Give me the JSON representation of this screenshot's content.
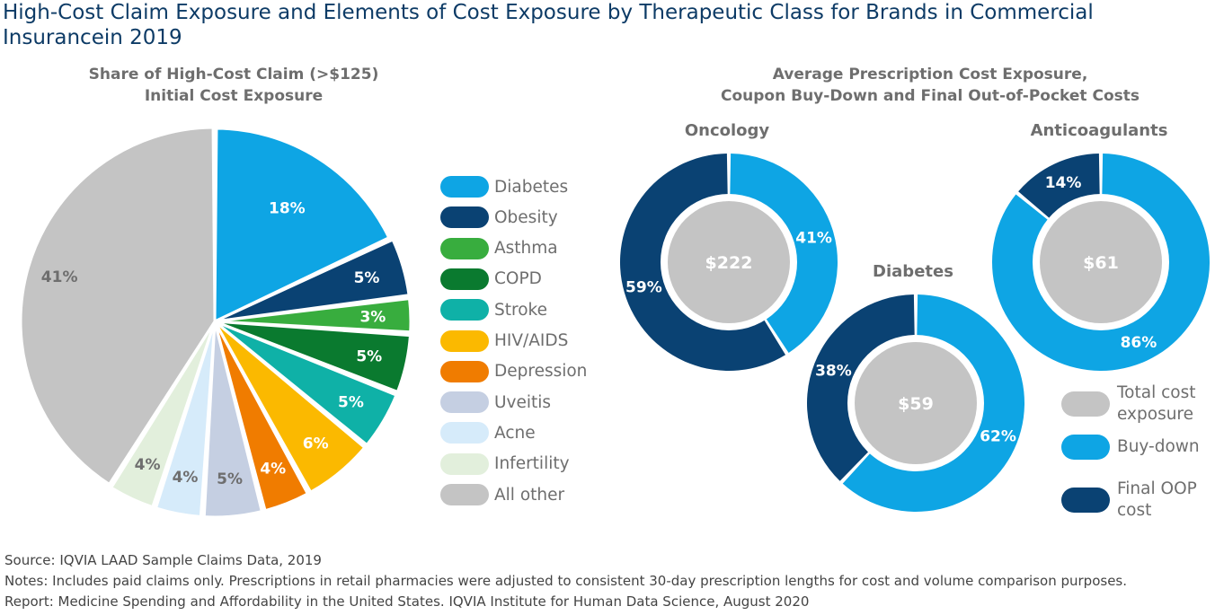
{
  "title": "High-Cost Claim Exposure and Elements of Cost Exposure by Therapeutic Class for Brands in Commercial Insurancein 2019",
  "chart_data": [
    {
      "type": "pie",
      "title_line1": "Share of High-Cost Claim (>$125)",
      "title_line2": "Initial Cost Exposure",
      "slices": [
        {
          "name": "Diabetes",
          "value": 18,
          "label": "18%",
          "color": "#0ea5e4",
          "text_color": "#ffffff"
        },
        {
          "name": "Obesity",
          "value": 5,
          "label": "5%",
          "color": "#0a4273",
          "text_color": "#ffffff"
        },
        {
          "name": "Asthma",
          "value": 3,
          "label": "3%",
          "color": "#38ad3e",
          "text_color": "#ffffff"
        },
        {
          "name": "COPD",
          "value": 5,
          "label": "5%",
          "color": "#0a7a2f",
          "text_color": "#ffffff"
        },
        {
          "name": "Stroke",
          "value": 5,
          "label": "5%",
          "color": "#0fb1a7",
          "text_color": "#ffffff"
        },
        {
          "name": "HIV/AIDS",
          "value": 6,
          "label": "6%",
          "color": "#fbb900",
          "text_color": "#ffffff"
        },
        {
          "name": "Depression",
          "value": 4,
          "label": "4%",
          "color": "#f07c00",
          "text_color": "#ffffff"
        },
        {
          "name": "Uveitis",
          "value": 5,
          "label": "5%",
          "color": "#c5cfe2",
          "text_color": "#6e6e6e"
        },
        {
          "name": "Acne",
          "value": 4,
          "label": "4%",
          "color": "#d6ebfa",
          "text_color": "#6e6e6e"
        },
        {
          "name": "Infertility",
          "value": 4,
          "label": "4%",
          "color": "#e2efdc",
          "text_color": "#6e6e6e"
        },
        {
          "name": "All other",
          "value": 41,
          "label": "41%",
          "color": "#c4c4c4",
          "text_color": "#6e6e6e"
        }
      ]
    },
    {
      "type": "donut",
      "title_line1": "Average Prescription Cost Exposure,",
      "title_line2": "Coupon Buy-Down and Final Out-of-Pocket Costs",
      "rings": [
        {
          "name": "Oncology",
          "total": "$222",
          "segments": [
            {
              "name": "Buy-down",
              "value": 41,
              "label": "41%"
            },
            {
              "name": "Final OOP cost",
              "value": 59,
              "label": "59%"
            }
          ]
        },
        {
          "name": "Diabetes",
          "total": "$59",
          "segments": [
            {
              "name": "Buy-down",
              "value": 62,
              "label": "62%"
            },
            {
              "name": "Final OOP cost",
              "value": 38,
              "label": "38%"
            }
          ]
        },
        {
          "name": "Anticoagulants",
          "total": "$61",
          "segments": [
            {
              "name": "Buy-down",
              "value": 86,
              "label": "86%"
            },
            {
              "name": "Final OOP cost",
              "value": 14,
              "label": "14%"
            }
          ]
        }
      ],
      "legend": [
        {
          "name": "Total cost exposure",
          "line1": "Total cost",
          "line2": "exposure",
          "color": "#c4c4c4"
        },
        {
          "name": "Buy-down",
          "line1": "Buy-down",
          "line2": "",
          "color": "#0ea5e4"
        },
        {
          "name": "Final OOP cost",
          "line1": "Final OOP",
          "line2": "cost",
          "color": "#0a4273"
        }
      ]
    }
  ],
  "notes": {
    "source": "Source: IQVIA LAAD Sample Claims Data, 2019",
    "notes": "Notes: Includes paid claims only. Prescriptions in retail pharmacies were adjusted to consistent 30-day prescription lengths for cost and volume comparison purposes.",
    "report": "Report: Medicine Spending and Affordability in the United States. IQVIA Institute for Human Data Science, August 2020"
  }
}
